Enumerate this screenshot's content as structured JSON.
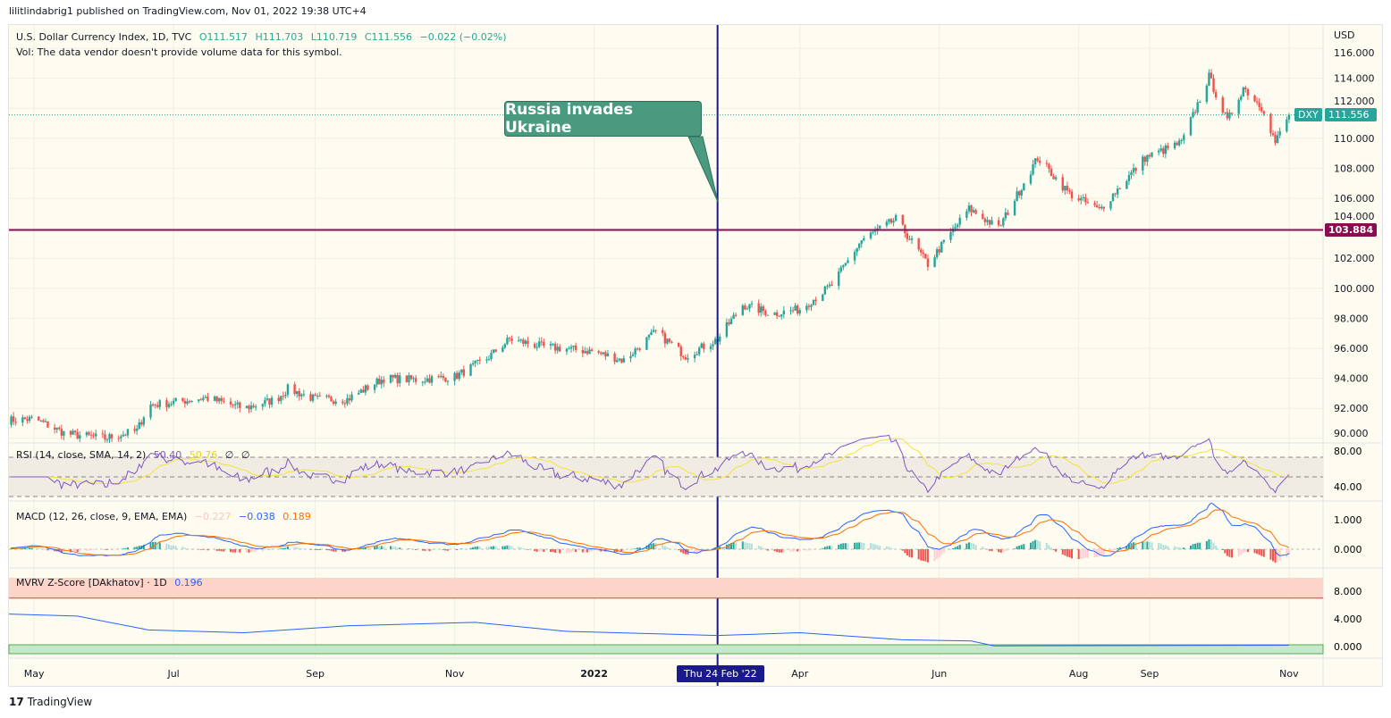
{
  "header": {
    "published": "lilitlindabrig1 published on TradingView.com, Nov 01, 2022 19:38 UTC+4"
  },
  "legend": {
    "symbol": "U.S. Dollar Currency Index, 1D, TVC",
    "o": "O111.517",
    "h": "H111.703",
    "l": "L110.719",
    "c": "C111.556",
    "chg": "−0.022 (−0.02%)",
    "vol": "Vol: The data vendor doesn't provide volume data for this symbol."
  },
  "rsi_legend": {
    "title": "RSI (14, close, SMA, 14, 2)",
    "v1": "50.40",
    "v2": "50.76",
    "v3": "∅",
    "v4": "∅"
  },
  "macd_legend": {
    "title": "MACD (12, 26, close, 9, EMA, EMA)",
    "hist": "−0.227",
    "macd": "−0.038",
    "signal": "0.189"
  },
  "mvrv_legend": {
    "title": "MVRV Z-Score [DAkhatov] · 1D",
    "value": "0.196"
  },
  "annotation": {
    "text": "Russia invades Ukraine"
  },
  "price_axis": {
    "unit": "USD",
    "ticks": [
      "116.000",
      "114.000",
      "112.000",
      "110.000",
      "108.000",
      "106.000",
      "104.000",
      "102.000",
      "100.000",
      "98.000",
      "96.000",
      "94.000",
      "92.000",
      "90.000"
    ],
    "last_tag": "DXY",
    "last_value": "111.556",
    "line_value": "103.884"
  },
  "rsi_axis": {
    "ticks": [
      "80.00",
      "40.00"
    ]
  },
  "macd_axis": {
    "ticks": [
      "1.000",
      "0.000"
    ]
  },
  "mvrv_axis": {
    "ticks": [
      "8.000",
      "4.000",
      "0.000"
    ]
  },
  "time_axis": {
    "labels": [
      [
        "May",
        "2021-05-01"
      ],
      [
        "Jul",
        "2021-07-01"
      ],
      [
        "Sep",
        "2021-09-01"
      ],
      [
        "Nov",
        "2021-11-01"
      ],
      [
        "2022",
        "2022-01-01"
      ],
      [
        "Apr",
        "2022-04-01"
      ],
      [
        "Jun",
        "2022-06-01"
      ],
      [
        "Aug",
        "2022-08-01"
      ],
      [
        "Sep",
        "2022-09-01"
      ],
      [
        "Nov",
        "2022-11-01"
      ]
    ],
    "crosshair_label": "Thu 24 Feb '22"
  },
  "brand": {
    "name": "TradingView"
  },
  "colors": {
    "up": "#26a69a",
    "down": "#ef5350",
    "hline": "#880e4f",
    "vline": "#1a1a8c",
    "rsi": "#7e57c2",
    "rsi_ma": "#f5e23b",
    "macd": "#2962ff",
    "signal": "#ff6d00",
    "mvrv": "#2962ff"
  },
  "chart_data": {
    "type": "candlestick",
    "symbol": "DXY",
    "timeframe": "1D",
    "ylim": [
      90,
      116.5
    ],
    "closes": [
      [
        "2021-04-20",
        91.2
      ],
      [
        "2021-05-01",
        91.3
      ],
      [
        "2021-05-15",
        90.3
      ],
      [
        "2021-06-01",
        90.0
      ],
      [
        "2021-06-15",
        90.5
      ],
      [
        "2021-06-20",
        92.2
      ],
      [
        "2021-07-01",
        92.4
      ],
      [
        "2021-07-15",
        92.7
      ],
      [
        "2021-08-01",
        92.0
      ],
      [
        "2021-08-15",
        92.6
      ],
      [
        "2021-08-20",
        93.3
      ],
      [
        "2021-09-01",
        92.6
      ],
      [
        "2021-09-15",
        92.6
      ],
      [
        "2021-10-01",
        94.0
      ],
      [
        "2021-10-15",
        93.9
      ],
      [
        "2021-11-01",
        94.1
      ],
      [
        "2021-11-15",
        95.3
      ],
      [
        "2021-11-25",
        96.6
      ],
      [
        "2021-12-10",
        96.1
      ],
      [
        "2021-12-31",
        95.8
      ],
      [
        "2022-01-14",
        95.2
      ],
      [
        "2022-01-28",
        97.1
      ],
      [
        "2022-02-10",
        95.5
      ],
      [
        "2022-02-24",
        96.6
      ],
      [
        "2022-03-07",
        98.9
      ],
      [
        "2022-03-20",
        98.3
      ],
      [
        "2022-04-01",
        98.6
      ],
      [
        "2022-04-15",
        100.2
      ],
      [
        "2022-04-28",
        103.2
      ],
      [
        "2022-05-13",
        104.6
      ],
      [
        "2022-05-27",
        101.6
      ],
      [
        "2022-06-14",
        105.3
      ],
      [
        "2022-06-27",
        104.0
      ],
      [
        "2022-07-14",
        108.7
      ],
      [
        "2022-07-28",
        106.3
      ],
      [
        "2022-08-10",
        105.2
      ],
      [
        "2022-08-30",
        108.7
      ],
      [
        "2022-09-15",
        109.7
      ],
      [
        "2022-09-27",
        114.1
      ],
      [
        "2022-10-05",
        111.1
      ],
      [
        "2022-10-12",
        113.4
      ],
      [
        "2022-10-21",
        111.9
      ],
      [
        "2022-10-26",
        109.7
      ],
      [
        "2022-11-01",
        111.556
      ]
    ],
    "horizontal_line": 103.884,
    "vertical_line": "2022-02-24",
    "mvrv": [
      [
        "2021-04-20",
        4.7
      ],
      [
        "2021-05-20",
        4.4
      ],
      [
        "2021-06-20",
        2.4
      ],
      [
        "2021-08-01",
        2.0
      ],
      [
        "2021-09-15",
        3.0
      ],
      [
        "2021-11-10",
        3.5
      ],
      [
        "2021-12-20",
        2.2
      ],
      [
        "2022-02-24",
        1.6
      ],
      [
        "2022-04-01",
        2.0
      ],
      [
        "2022-05-15",
        1.0
      ],
      [
        "2022-06-15",
        0.8
      ],
      [
        "2022-06-25",
        0.1
      ],
      [
        "2022-11-01",
        0.2
      ]
    ],
    "rsi_levels": [
      70,
      50,
      30
    ],
    "mvrv_bands": {
      "red_min": 7,
      "green_max": 0
    }
  }
}
